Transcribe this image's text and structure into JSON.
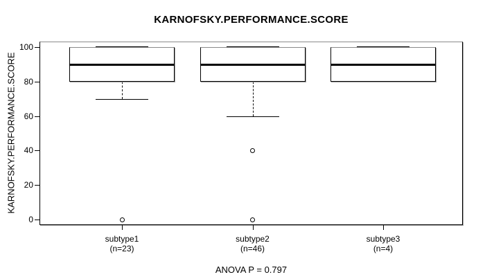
{
  "chart_data": {
    "type": "boxplot",
    "title": "KARNOFSKY.PERFORMANCE.SCORE",
    "ylabel": "KARNOFSKY.PERFORMANCE.SCORE",
    "xlabel": "",
    "footer": "ANOVA P = 0.797",
    "yticks": [
      0,
      20,
      40,
      60,
      80,
      100
    ],
    "ylim": [
      0,
      100
    ],
    "grid": false,
    "legend": "none",
    "groups": [
      {
        "label": "subtype1",
        "sublabel": "(n=23)",
        "n": 23,
        "q1": 80,
        "median": 90,
        "q3": 100,
        "whisker_low": 70,
        "whisker_high": 100,
        "outliers": [
          0
        ]
      },
      {
        "label": "subtype2",
        "sublabel": "(n=46)",
        "n": 46,
        "q1": 80,
        "median": 90,
        "q3": 100,
        "whisker_low": 60,
        "whisker_high": 100,
        "outliers": [
          40,
          0
        ]
      },
      {
        "label": "subtype3",
        "sublabel": "(n=4)",
        "n": 4,
        "q1": 80,
        "median": 90,
        "q3": 100,
        "whisker_low": 80,
        "whisker_high": 100,
        "outliers": []
      }
    ],
    "colors": {
      "line": "#000000",
      "line_soft": "#8a8a8a",
      "shadow": "#a0a0a0",
      "background": "#ffffff",
      "text": "#000000"
    }
  }
}
